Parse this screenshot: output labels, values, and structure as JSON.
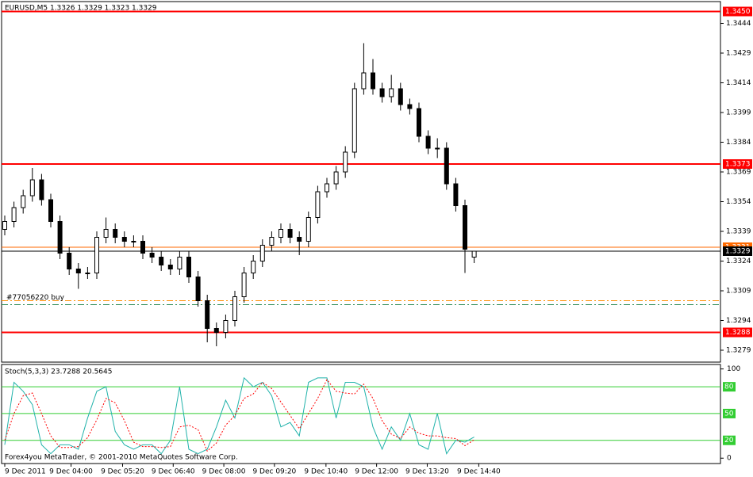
{
  "chart_data": [
    {
      "type": "candlestick",
      "title": "EURUSD,M5 1.3326 1.3329 1.3323 1.3329",
      "open": [
        1.334,
        1.3344,
        1.3351,
        1.3357,
        1.3365,
        1.3355,
        1.3344,
        1.3328,
        1.332,
        1.3318,
        1.3318,
        1.3336,
        1.334,
        1.3336,
        1.3334,
        1.3334,
        1.3328,
        1.3326,
        1.3322,
        1.332,
        1.3326,
        1.3316,
        1.3304,
        1.329,
        1.3288,
        1.3294,
        1.3306,
        1.3318,
        1.3324,
        1.3332,
        1.3336,
        1.334,
        1.3336,
        1.3334,
        1.3346,
        1.3359,
        1.3363,
        1.3369,
        1.3379,
        1.3411,
        1.3419,
        1.3411,
        1.3407,
        1.3411,
        1.3403,
        1.3401,
        1.3387,
        1.3381,
        1.3381,
        1.3363,
        1.3352,
        1.3326
      ],
      "high": [
        1.3347,
        1.3354,
        1.336,
        1.3371,
        1.3368,
        1.3358,
        1.3347,
        1.3331,
        1.3323,
        1.3321,
        1.3339,
        1.3346,
        1.3343,
        1.3339,
        1.3337,
        1.3337,
        1.3331,
        1.3329,
        1.3325,
        1.3329,
        1.3329,
        1.3319,
        1.3307,
        1.3293,
        1.3297,
        1.3309,
        1.3321,
        1.3327,
        1.3335,
        1.3339,
        1.3343,
        1.3343,
        1.3339,
        1.3349,
        1.3362,
        1.3366,
        1.3372,
        1.3382,
        1.3414,
        1.3434,
        1.3426,
        1.3414,
        1.3418,
        1.3414,
        1.3406,
        1.3404,
        1.339,
        1.3386,
        1.3384,
        1.3366,
        1.3355,
        1.3329
      ],
      "low": [
        1.3337,
        1.3341,
        1.3348,
        1.3354,
        1.3352,
        1.3341,
        1.3325,
        1.3317,
        1.331,
        1.3315,
        1.3315,
        1.3333,
        1.3333,
        1.3331,
        1.3331,
        1.3325,
        1.3323,
        1.3319,
        1.3317,
        1.3317,
        1.3313,
        1.3301,
        1.3283,
        1.3281,
        1.3285,
        1.3291,
        1.3303,
        1.3315,
        1.3321,
        1.3329,
        1.3333,
        1.3333,
        1.3327,
        1.3331,
        1.3343,
        1.3356,
        1.336,
        1.3366,
        1.3376,
        1.3408,
        1.3408,
        1.3404,
        1.3404,
        1.34,
        1.3398,
        1.3384,
        1.3378,
        1.3376,
        1.336,
        1.3349,
        1.3318,
        1.3323
      ],
      "close": [
        1.3344,
        1.3351,
        1.3357,
        1.3365,
        1.3355,
        1.3344,
        1.3328,
        1.332,
        1.3318,
        1.3318,
        1.3336,
        1.334,
        1.3336,
        1.3334,
        1.3334,
        1.3328,
        1.3326,
        1.3322,
        1.332,
        1.3326,
        1.3316,
        1.3304,
        1.329,
        1.3288,
        1.3294,
        1.3306,
        1.3318,
        1.3324,
        1.3332,
        1.3336,
        1.334,
        1.3336,
        1.3334,
        1.3346,
        1.3359,
        1.3363,
        1.3369,
        1.3379,
        1.3411,
        1.3419,
        1.3411,
        1.3407,
        1.3411,
        1.3403,
        1.3401,
        1.3387,
        1.3381,
        1.3381,
        1.3363,
        1.3352,
        1.333,
        1.3329
      ],
      "color": "#000000",
      "ylim": [
        1.3273,
        1.3455
      ],
      "yticks": [
        1.3444,
        1.3429,
        1.3414,
        1.3399,
        1.3384,
        1.3369,
        1.3354,
        1.3339,
        1.3324,
        1.3309,
        1.3294,
        1.3279
      ],
      "levels": [
        {
          "value": 1.345,
          "label": "1.3450",
          "color": "#ff0000"
        },
        {
          "value": 1.3373,
          "label": "1.3373",
          "color": "#ff0000"
        },
        {
          "value": 1.3288,
          "label": "1.3288",
          "color": "#ff0000"
        },
        {
          "value": 1.3331,
          "label": "1.3331",
          "color": "#ff6a00"
        },
        {
          "value": 1.3329,
          "label": "1.3329",
          "color": "#000000"
        }
      ],
      "order_lines": [
        {
          "value": 1.3304,
          "label": "#77056220 buy",
          "color": "#ff8c00"
        },
        {
          "value": 1.3302,
          "color": "#2e8b57"
        }
      ]
    },
    {
      "type": "line",
      "title": "Stoch(5,3,3) 23.7288 20.5645",
      "footer": "Forex4you MetaTrader, © 2001-2010 MetaQuotes Software Corp.",
      "series": [
        {
          "color": "#20b2aa",
          "values": [
            15,
            85,
            75,
            60,
            15,
            5,
            15,
            15,
            10,
            45,
            75,
            80,
            30,
            15,
            10,
            15,
            15,
            5,
            20,
            80,
            10,
            5,
            10,
            35,
            65,
            45,
            90,
            80,
            85,
            70,
            35,
            40,
            25,
            85,
            90,
            90,
            45,
            85,
            85,
            80,
            35,
            10,
            35,
            20,
            50,
            15,
            10,
            50,
            5,
            20,
            18,
            23.7288
          ]
        },
        {
          "color": "#ff0000",
          "dashed": true,
          "values": [
            20,
            50,
            70,
            73,
            50,
            25,
            12,
            12,
            13,
            23,
            43,
            67,
            62,
            42,
            18,
            13,
            13,
            12,
            13,
            35,
            37,
            32,
            8,
            17,
            37,
            48,
            67,
            72,
            85,
            78,
            63,
            48,
            33,
            50,
            67,
            88,
            75,
            73,
            72,
            83,
            67,
            42,
            27,
            22,
            35,
            28,
            25,
            25,
            23,
            22,
            14,
            20.5645
          ]
        }
      ],
      "ylim": [
        -6,
        105
      ],
      "yticks": [
        0,
        100
      ],
      "levels": [
        {
          "value": 80,
          "color": "#32cd32"
        },
        {
          "value": 50,
          "color": "#32cd32"
        },
        {
          "value": 20,
          "color": "#32cd32"
        }
      ],
      "xticks": [
        {
          "value": 0,
          "label": "9 Dec 2011"
        },
        {
          "value": 7.2,
          "label": "9 Dec 04:00"
        },
        {
          "value": 12.8,
          "label": "9 Dec 05:20"
        },
        {
          "value": 18.3,
          "label": "9 Dec 06:40"
        },
        {
          "value": 23.8,
          "label": "9 Dec 08:00"
        },
        {
          "value": 29.3,
          "label": "9 Dec 09:20"
        },
        {
          "value": 34.9,
          "label": "9 Dec 10:40"
        },
        {
          "value": 40.4,
          "label": "9 Dec 12:00"
        },
        {
          "value": 45.9,
          "label": "9 Dec 13:20"
        },
        {
          "value": 51.5,
          "label": "9 Dec 14:40"
        }
      ]
    }
  ]
}
